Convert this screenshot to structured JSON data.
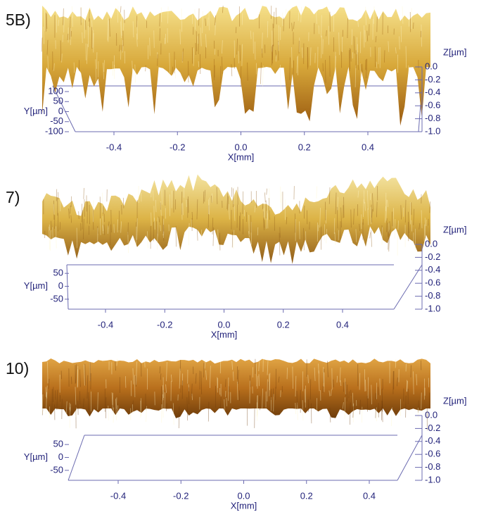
{
  "chart_data": [
    {
      "type": "surface",
      "title": "5B)",
      "xlabel": "X[mm]",
      "ylabel": "Y[µm]",
      "zlabel": "Z[µm]",
      "xlim": [
        -0.55,
        0.55
      ],
      "xticks": [
        -0.4,
        -0.2,
        {
          "value": 0,
          "label": "0.0"
        },
        0.2,
        0.4
      ],
      "ylim": [
        -100,
        100
      ],
      "yticks": [
        100,
        50,
        0,
        -50,
        -100
      ],
      "zlim": [
        -1,
        0
      ],
      "zticks": [
        {
          "value": 0,
          "label": "0.0"
        },
        -0.2,
        -0.4,
        -0.6,
        -0.8,
        {
          "value": -1,
          "label": "-1.0"
        }
      ]
    },
    {
      "type": "surface",
      "title": "7)",
      "xlabel": "X[mm]",
      "ylabel": "Y[µm]",
      "zlabel": "Z[µm]",
      "xlim": [
        -0.55,
        0.55
      ],
      "xticks": [
        -0.4,
        -0.2,
        {
          "value": 0,
          "label": "0.0"
        },
        0.2,
        0.4
      ],
      "ylim": [
        -75,
        75
      ],
      "yticks": [
        50,
        0,
        -50
      ],
      "zlim": [
        -1,
        0
      ],
      "zticks": [
        {
          "value": 0,
          "label": "0.0"
        },
        -0.2,
        -0.4,
        -0.6,
        -0.8,
        {
          "value": -1,
          "label": "-1.0"
        }
      ]
    },
    {
      "type": "surface",
      "title": "10)",
      "xlabel": "X[mm]",
      "ylabel": "Y[µm]",
      "zlabel": "Z[µm]",
      "xlim": [
        -0.55,
        0.55
      ],
      "xticks": [
        -0.4,
        -0.2,
        {
          "value": 0,
          "label": "0.0"
        },
        0.2,
        0.4
      ],
      "ylim": [
        -75,
        75
      ],
      "yticks": [
        50,
        0,
        -50
      ],
      "zlim": [
        -1,
        0
      ],
      "zticks": [
        {
          "value": 0,
          "label": "0.0"
        },
        -0.2,
        -0.4,
        -0.6,
        -0.8,
        {
          "value": -1,
          "label": "-1.0"
        }
      ]
    }
  ]
}
